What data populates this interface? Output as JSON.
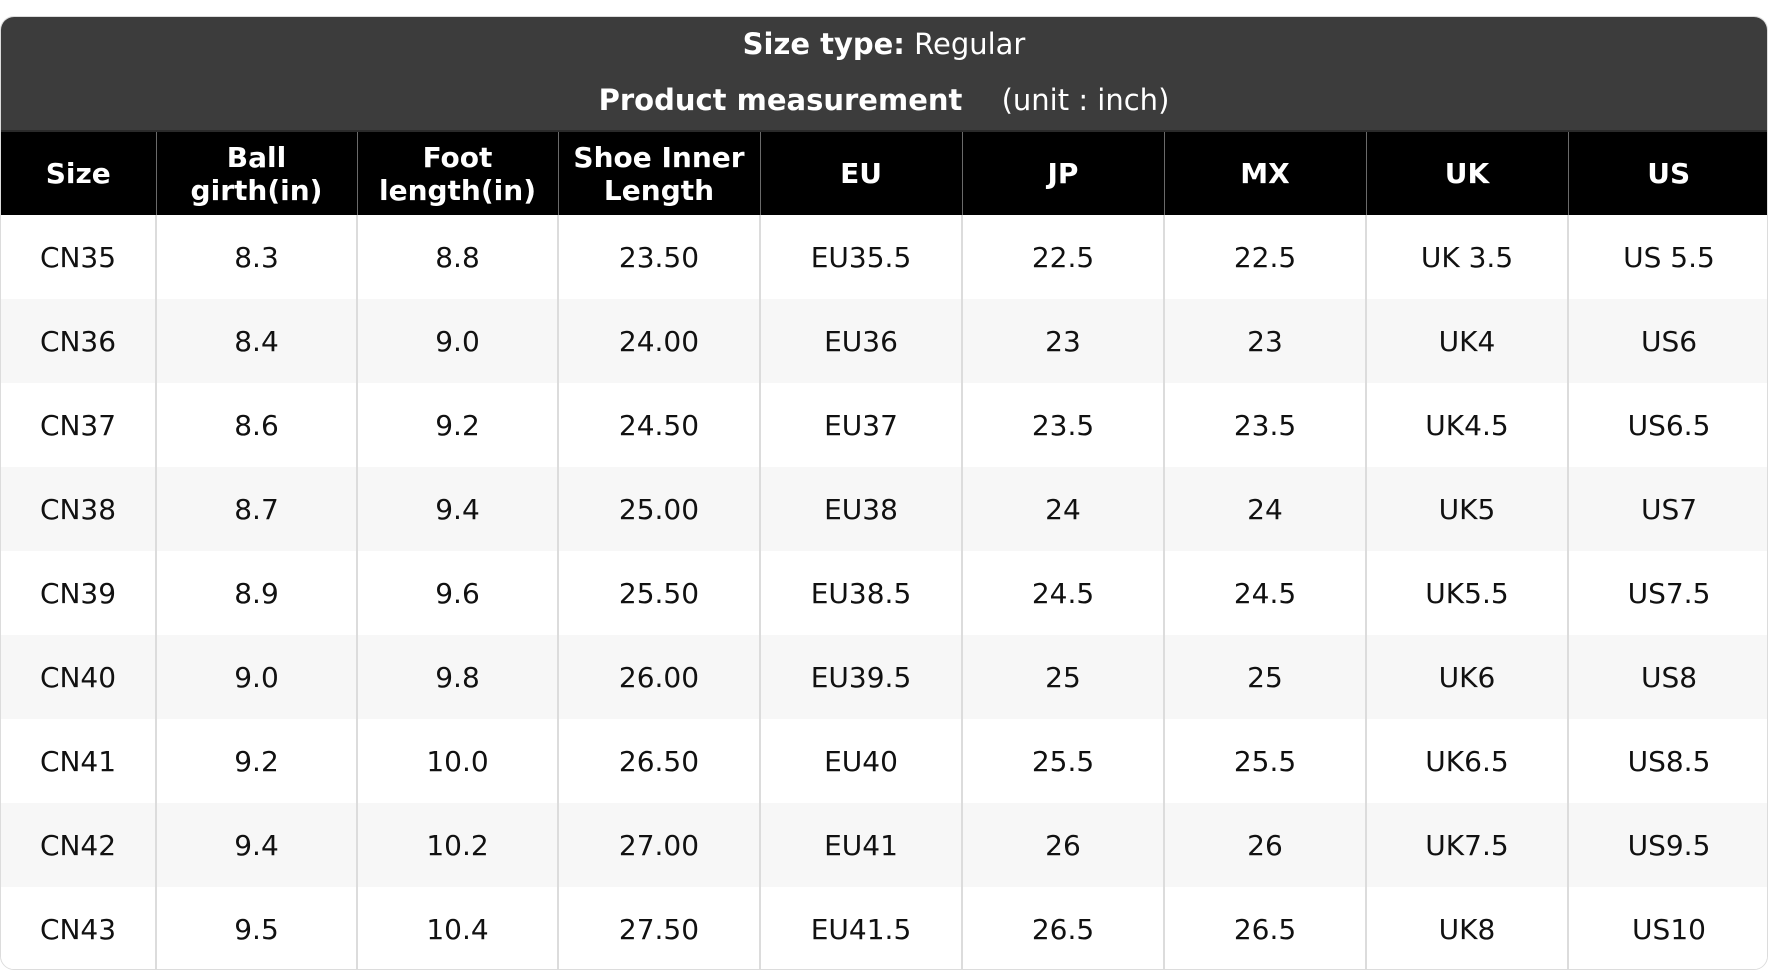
{
  "banner": {
    "size_type_label": "Size type:",
    "size_type_value": "Regular",
    "measurement_label": "Product measurement",
    "unit_text": "(unit : inch)"
  },
  "table": {
    "headers": [
      [
        "Size"
      ],
      [
        "Ball",
        "girth(in)"
      ],
      [
        "Foot",
        "length(in)"
      ],
      [
        "Shoe Inner",
        "Length"
      ],
      [
        "EU"
      ],
      [
        "JP"
      ],
      [
        "MX"
      ],
      [
        "UK"
      ],
      [
        "US"
      ]
    ],
    "rows": [
      [
        "CN35",
        "8.3",
        "8.8",
        "23.50",
        "EU35.5",
        "22.5",
        "22.5",
        "UK 3.5",
        "US 5.5"
      ],
      [
        "CN36",
        "8.4",
        "9.0",
        "24.00",
        "EU36",
        "23",
        "23",
        "UK4",
        "US6"
      ],
      [
        "CN37",
        "8.6",
        "9.2",
        "24.50",
        "EU37",
        "23.5",
        "23.5",
        "UK4.5",
        "US6.5"
      ],
      [
        "CN38",
        "8.7",
        "9.4",
        "25.00",
        "EU38",
        "24",
        "24",
        "UK5",
        "US7"
      ],
      [
        "CN39",
        "8.9",
        "9.6",
        "25.50",
        "EU38.5",
        "24.5",
        "24.5",
        "UK5.5",
        "US7.5"
      ],
      [
        "CN40",
        "9.0",
        "9.8",
        "26.00",
        "EU39.5",
        "25",
        "25",
        "UK6",
        "US8"
      ],
      [
        "CN41",
        "9.2",
        "10.0",
        "26.50",
        "EU40",
        "25.5",
        "25.5",
        "UK6.5",
        "US8.5"
      ],
      [
        "CN42",
        "9.4",
        "10.2",
        "27.00",
        "EU41",
        "26",
        "26",
        "UK7.5",
        "US9.5"
      ],
      [
        "CN43",
        "9.5",
        "10.4",
        "27.50",
        "EU41.5",
        "26.5",
        "26.5",
        "UK8",
        "US10"
      ]
    ]
  },
  "colors": {
    "banner_bg": "#3c3c3c",
    "header_bg": "#000000",
    "stripe_bg": "#f7f7f7"
  }
}
